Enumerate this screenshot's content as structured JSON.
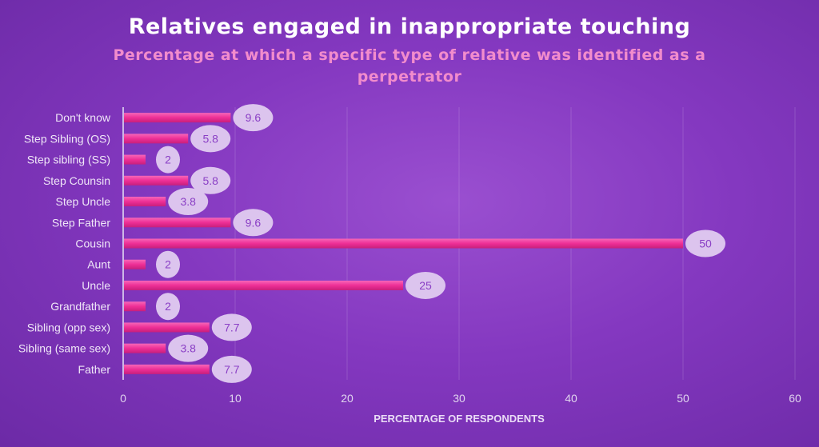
{
  "chart_data": {
    "type": "bar",
    "orientation": "horizontal",
    "title": "Relatives engaged in inappropriate touching",
    "subtitle": "Percentage at which a specific type of relative was identified as a perpetrator",
    "xlabel": "PERCENTAGE OF RESPONDENTS",
    "ylabel": "",
    "categories": [
      "Don't know",
      "Step Sibling (OS)",
      "Step sibling (SS)",
      "Step Counsin",
      "Step Uncle",
      "Step Father",
      "Cousin",
      "Aunt",
      "Uncle",
      "Grandfather",
      "Sibling (opp sex)",
      "Sibling (same sex)",
      "Father"
    ],
    "values": [
      9.6,
      5.8,
      2,
      5.8,
      3.8,
      9.6,
      50,
      2,
      25,
      2,
      7.7,
      3.8,
      7.7
    ],
    "xlim": [
      0,
      60
    ],
    "xticks": [
      0,
      10,
      20,
      30,
      40,
      50,
      60
    ],
    "grid": true,
    "data_labels": true,
    "colors": {
      "bar": "#f0359a",
      "label_bubble": "#dcc4ee",
      "label_text": "#8a3fc5",
      "background": "#8438c0"
    }
  }
}
